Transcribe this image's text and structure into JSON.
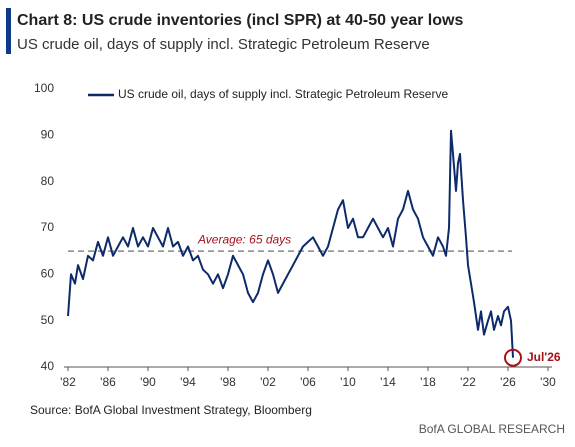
{
  "chart_data": {
    "type": "line",
    "title": "Chart 8: US crude inventories (incl SPR) at 40-50 year lows",
    "subtitle": "US crude oil, days of supply incl. Strategic Petroleum Reserve",
    "source": "Source: BofA Global Investment Strategy, Bloomberg",
    "footer": "BofA GLOBAL RESEARCH",
    "average": {
      "value": 65,
      "label": "Average: 65 days",
      "color": "#a6121a"
    },
    "end_annotation": "Jul'26",
    "legend": "top-left",
    "x": [
      1982.0,
      1982.3,
      1982.7,
      1983.0,
      1983.5,
      1984.0,
      1984.5,
      1985.0,
      1985.5,
      1986.0,
      1986.5,
      1987.0,
      1987.5,
      1988.0,
      1988.5,
      1989.0,
      1989.5,
      1990.0,
      1990.5,
      1991.0,
      1991.5,
      1992.0,
      1992.5,
      1993.0,
      1993.5,
      1994.0,
      1994.5,
      1995.0,
      1995.5,
      1996.0,
      1996.5,
      1997.0,
      1997.5,
      1998.0,
      1998.5,
      1999.0,
      1999.5,
      2000.0,
      2000.5,
      2001.0,
      2001.5,
      2002.0,
      2002.5,
      2003.0,
      2003.5,
      2004.0,
      2004.5,
      2005.0,
      2005.5,
      2006.0,
      2006.5,
      2007.0,
      2007.5,
      2008.0,
      2008.5,
      2009.0,
      2009.5,
      2010.0,
      2010.5,
      2011.0,
      2011.5,
      2012.0,
      2012.5,
      2013.0,
      2013.5,
      2014.0,
      2014.5,
      2015.0,
      2015.5,
      2016.0,
      2016.5,
      2017.0,
      2017.5,
      2018.0,
      2018.5,
      2019.0,
      2019.5,
      2019.8,
      2020.1,
      2020.3,
      2020.5,
      2020.8,
      2021.0,
      2021.2,
      2021.5,
      2021.8,
      2022.0,
      2022.3,
      2022.6,
      2023.0,
      2023.3,
      2023.6,
      2024.0,
      2024.3,
      2024.6,
      2025.0,
      2025.3,
      2025.6,
      2026.0,
      2026.3,
      2026.5
    ],
    "series": [
      {
        "name": "US crude oil, days of supply incl. Strategic Petroleum Reserve",
        "color": "#0d2a6b",
        "values": [
          51,
          60,
          58,
          62,
          59,
          64,
          63,
          67,
          64,
          68,
          64,
          66,
          68,
          66,
          70,
          66,
          68,
          66,
          70,
          68,
          66,
          70,
          66,
          67,
          64,
          66,
          63,
          64,
          61,
          60,
          58,
          60,
          57,
          60,
          64,
          62,
          60,
          56,
          54,
          56,
          60,
          63,
          60,
          56,
          58,
          60,
          62,
          64,
          66,
          67,
          68,
          66,
          64,
          66,
          70,
          74,
          76,
          70,
          72,
          68,
          68,
          70,
          72,
          70,
          68,
          70,
          66,
          72,
          74,
          78,
          74,
          72,
          68,
          66,
          64,
          68,
          66,
          64,
          70,
          91,
          86,
          78,
          84,
          86,
          76,
          68,
          62,
          58,
          54,
          48,
          52,
          47,
          50,
          52,
          48,
          51,
          49,
          52,
          53,
          50,
          42
        ]
      }
    ],
    "xlim": [
      1982,
      2030
    ],
    "xticks": [
      {
        "value": 1982,
        "label": "'82"
      },
      {
        "value": 1986,
        "label": "'86"
      },
      {
        "value": 1990,
        "label": "'90"
      },
      {
        "value": 1994,
        "label": "'94"
      },
      {
        "value": 1998,
        "label": "'98"
      },
      {
        "value": 2002,
        "label": "'02"
      },
      {
        "value": 2006,
        "label": "'06"
      },
      {
        "value": 2010,
        "label": "'10"
      },
      {
        "value": 2014,
        "label": "'14"
      },
      {
        "value": 2018,
        "label": "'18"
      },
      {
        "value": 2022,
        "label": "'22"
      },
      {
        "value": 2026,
        "label": "'26"
      },
      {
        "value": 2030,
        "label": "'30"
      }
    ],
    "ylim": [
      40,
      100
    ],
    "yticks": [
      40,
      50,
      60,
      70,
      80,
      90,
      100
    ],
    "grid": false
  }
}
